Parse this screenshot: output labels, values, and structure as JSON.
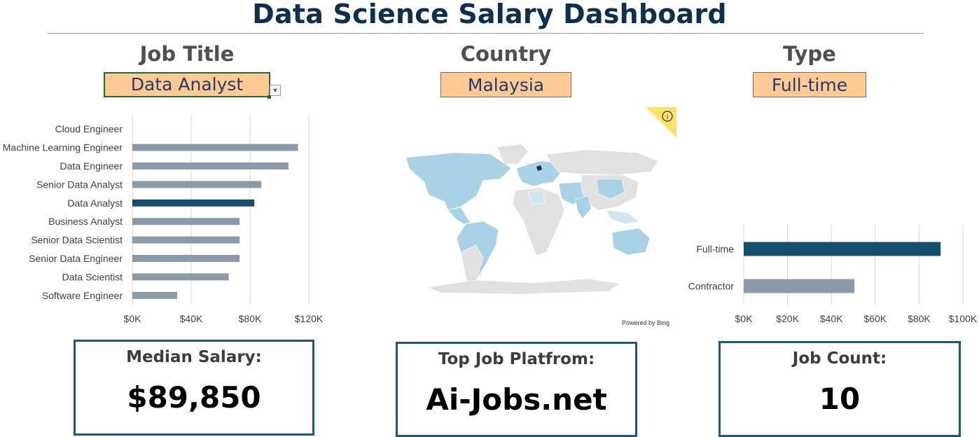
{
  "header": {
    "title": "Data Science Salary Dashboard"
  },
  "filters": {
    "job_title": {
      "label": "Job Title",
      "value": "Data Analyst"
    },
    "country": {
      "label": "Country",
      "value": "Malaysia"
    },
    "type": {
      "label": "Type",
      "value": "Full-time"
    }
  },
  "map": {
    "attribution": "Powered by Bing",
    "info_icon": "info-icon",
    "highlight_color": "#0f4c6e"
  },
  "colors": {
    "highlight": "#164f6e",
    "default": "#8a9aa9",
    "kpi_border": "#1f5a72",
    "filter_fill": "#ffca93"
  },
  "chart_data": [
    {
      "type": "bar",
      "orientation": "horizontal",
      "categories": [
        "Cloud Engineer",
        "Machine Learning Engineer",
        "Data Engineer",
        "Senior Data Analyst",
        "Data Analyst",
        "Business Analyst",
        "Senior Data Scientist",
        "Senior Data Engineer",
        "Data Scientist",
        "Software Engineer"
      ],
      "values": [
        0,
        122000,
        115000,
        95000,
        89850,
        79000,
        79000,
        79000,
        71000,
        33000
      ],
      "highlight": "Data Analyst",
      "xticks": [
        "$0K",
        "$40K",
        "$80K",
        "$120K"
      ],
      "xlim": [
        0,
        130000
      ],
      "grid": true
    },
    {
      "type": "bar",
      "orientation": "horizontal",
      "categories": [
        "Full-time",
        "Contractor"
      ],
      "values": [
        89850,
        50500
      ],
      "highlight": "Full-time",
      "xticks": [
        "$0K",
        "$20K",
        "$40K",
        "$60K",
        "$80K",
        "$100K"
      ],
      "xlim": [
        0,
        100000
      ],
      "grid": true
    }
  ],
  "kpis": [
    {
      "label": "Median Salary:",
      "value": "$89,850"
    },
    {
      "label": "Top Job Platfrom:",
      "value": "Ai-Jobs.net"
    },
    {
      "label": "Job Count:",
      "value": "10"
    }
  ]
}
